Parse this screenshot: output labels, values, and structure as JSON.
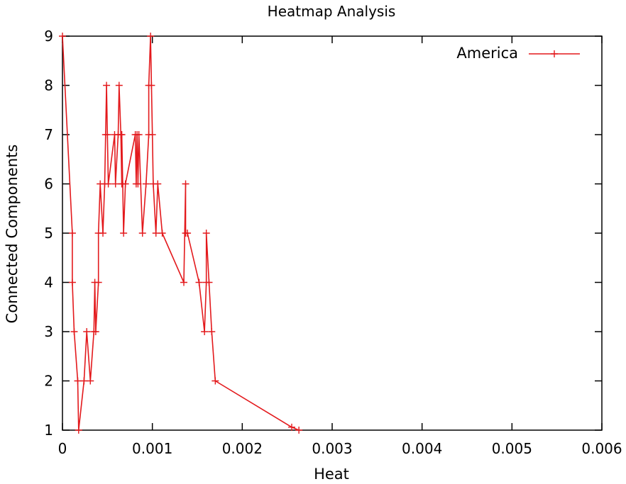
{
  "chart_data": {
    "type": "line",
    "title": "Heatmap Analysis",
    "xlabel": "Heat",
    "ylabel": "Connected Components",
    "xlim": [
      0,
      0.006
    ],
    "ylim": [
      1,
      9
    ],
    "xticks": [
      "0",
      "0.001",
      "0.002",
      "0.003",
      "0.004",
      "0.005",
      "0.006"
    ],
    "yticks": [
      "1",
      "2",
      "3",
      "4",
      "5",
      "6",
      "7",
      "8",
      "9"
    ],
    "grid": false,
    "legend_position": "top-right",
    "colors": {
      "series": "#e3191c",
      "axis": "#000000",
      "background": "#ffffff"
    },
    "series": [
      {
        "name": "America",
        "marker": "plus",
        "points": [
          [
            0.0,
            9
          ],
          [
            0.00011,
            5
          ],
          [
            0.00011,
            4
          ],
          [
            0.00013,
            3
          ],
          [
            0.00017,
            2
          ],
          [
            0.00018,
            1
          ],
          [
            0.00024,
            2
          ],
          [
            0.00027,
            3
          ],
          [
            0.00031,
            2
          ],
          [
            0.00035,
            3
          ],
          [
            0.00036,
            4
          ],
          [
            0.00037,
            3
          ],
          [
            0.0004,
            4
          ],
          [
            0.0004,
            5
          ],
          [
            0.00042,
            6
          ],
          [
            0.00045,
            5
          ],
          [
            0.00047,
            6
          ],
          [
            0.00048,
            7
          ],
          [
            0.00049,
            8
          ],
          [
            0.0005,
            7
          ],
          [
            0.00051,
            6
          ],
          [
            0.00058,
            7
          ],
          [
            0.00059,
            6
          ],
          [
            0.00062,
            7
          ],
          [
            0.00063,
            8
          ],
          [
            0.00065,
            7
          ],
          [
            0.00066,
            6
          ],
          [
            0.00066,
            7
          ],
          [
            0.00067,
            6
          ],
          [
            0.00068,
            5
          ],
          [
            0.0007,
            6
          ],
          [
            0.00081,
            7
          ],
          [
            0.00082,
            6
          ],
          [
            0.00083,
            7
          ],
          [
            0.00084,
            6
          ],
          [
            0.00085,
            7
          ],
          [
            0.00089,
            5
          ],
          [
            0.00093,
            6
          ],
          [
            0.00096,
            7
          ],
          [
            0.00096,
            8
          ],
          [
            0.00098,
            9
          ],
          [
            0.00099,
            8
          ],
          [
            0.001,
            7
          ],
          [
            0.00101,
            6
          ],
          [
            0.00104,
            5
          ],
          [
            0.00106,
            6
          ],
          [
            0.00111,
            5
          ],
          [
            0.00135,
            4
          ],
          [
            0.00137,
            6
          ],
          [
            0.00137,
            5
          ],
          [
            0.00139,
            5
          ],
          [
            0.00152,
            4
          ],
          [
            0.00158,
            3
          ],
          [
            0.0016,
            4
          ],
          [
            0.0016,
            5
          ],
          [
            0.00163,
            4
          ],
          [
            0.00166,
            3
          ],
          [
            0.0017,
            2
          ],
          [
            0.00255,
            1.06
          ],
          [
            0.00263,
            1
          ]
        ]
      }
    ]
  }
}
